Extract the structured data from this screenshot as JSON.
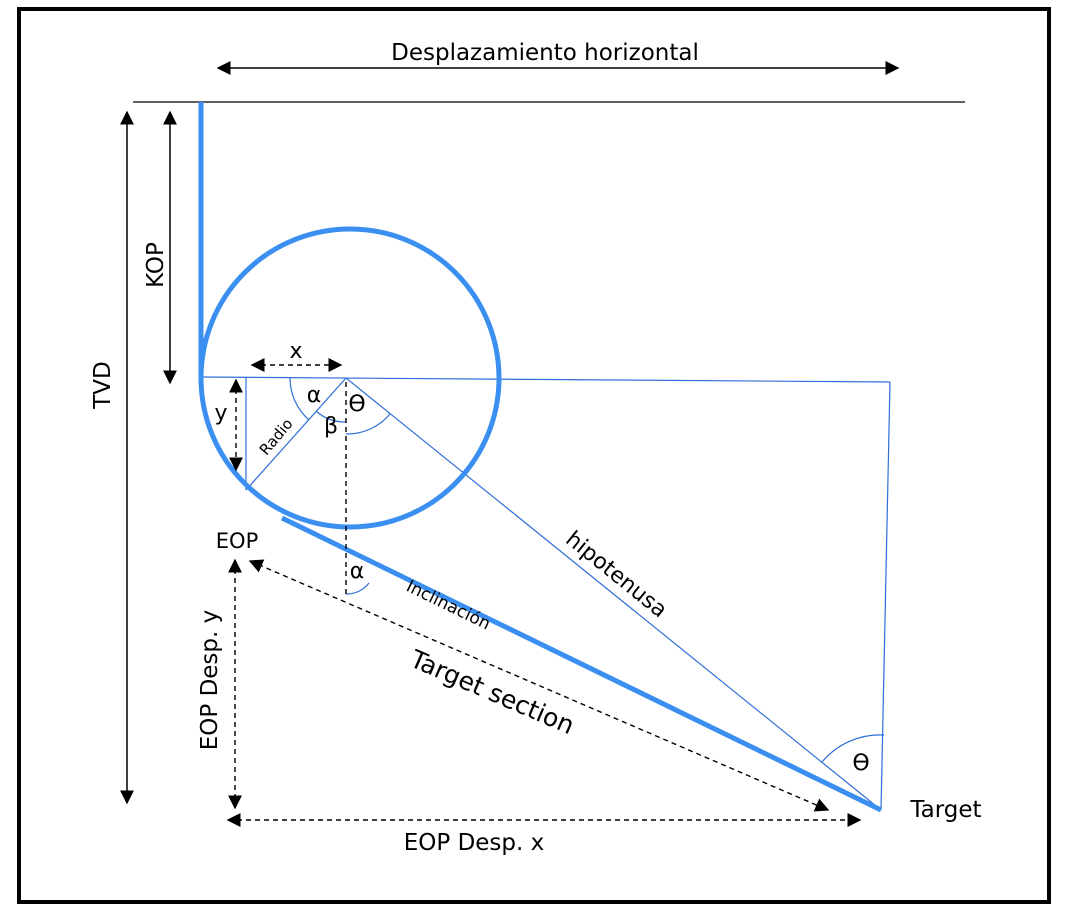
{
  "colors": {
    "well": "#3a8ff0",
    "thin": "#2f6fd6",
    "ink": "#000000",
    "frame": "#000000"
  },
  "labels": {
    "horizontal": "Desplazamiento  horizontal",
    "tvd": "TVD",
    "kop": "KOP",
    "x": "x",
    "y": "y",
    "alpha": "α",
    "beta": "β",
    "theta": "ϴ",
    "radio": "Radio",
    "eop": "EOP",
    "hipotenusa": "hipotenusa",
    "inclinacion": "Inclinación",
    "target_section": "Target section",
    "eop_desp_y": "EOP Desp. y",
    "eop_desp_x": "EOP Desp. x",
    "target": "Target"
  }
}
